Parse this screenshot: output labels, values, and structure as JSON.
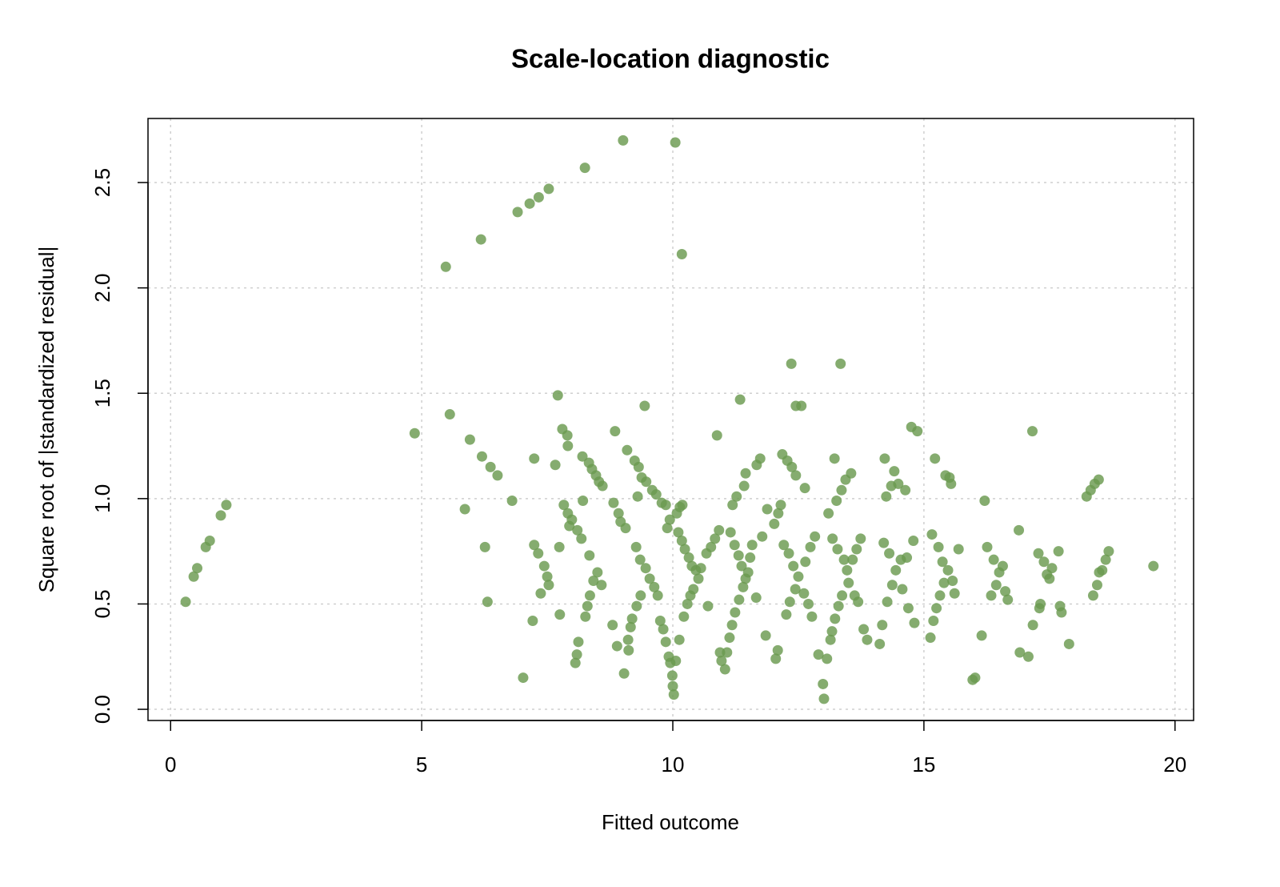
{
  "chart_data": {
    "type": "scatter",
    "title": "Scale-location diagnostic",
    "x_label": "Fitted outcome",
    "y_label": "Square root of |standardized residual|",
    "color": "#6a9a4f",
    "grid": true,
    "xlim": [
      -0.45,
      20.37
    ],
    "ylim": [
      -0.053,
      2.804
    ],
    "xticks": [
      0,
      5,
      10,
      15,
      20
    ],
    "yticks": [
      {
        "value": 0,
        "label": "0.0"
      },
      0.5,
      {
        "value": 1,
        "label": "1.0"
      },
      1.5,
      {
        "value": 2,
        "label": "2.0"
      },
      2.5
    ],
    "x": [
      0.3,
      0.46,
      0.53,
      0.7,
      0.78,
      1.0,
      1.11,
      4.86,
      5.48,
      5.56,
      5.86,
      5.96,
      6.18,
      6.2,
      6.26,
      6.31,
      6.37,
      6.51,
      6.8,
      6.91,
      7.02,
      7.15,
      7.21,
      7.24,
      7.24,
      7.32,
      7.33,
      7.37,
      7.44,
      7.5,
      7.53,
      7.53,
      7.66,
      7.71,
      7.74,
      7.75,
      7.8,
      7.83,
      7.9,
      7.91,
      7.91,
      7.94,
      7.99,
      8.06,
      8.09,
      8.1,
      8.12,
      8.18,
      8.2,
      8.21,
      8.25,
      8.26,
      8.3,
      8.33,
      8.34,
      8.35,
      8.39,
      8.42,
      8.47,
      8.5,
      8.53,
      8.58,
      8.6,
      8.8,
      8.82,
      8.85,
      8.89,
      8.92,
      8.96,
      9.01,
      9.03,
      9.06,
      9.09,
      9.11,
      9.12,
      9.16,
      9.19,
      9.24,
      9.27,
      9.28,
      9.3,
      9.32,
      9.35,
      9.36,
      9.38,
      9.44,
      9.46,
      9.47,
      9.54,
      9.59,
      9.63,
      9.67,
      9.7,
      9.75,
      9.78,
      9.81,
      9.86,
      9.86,
      9.89,
      9.92,
      9.94,
      9.95,
      9.99,
      10.0,
      10.02,
      10.05,
      10.06,
      10.08,
      10.11,
      10.13,
      10.14,
      10.18,
      10.18,
      10.19,
      10.22,
      10.24,
      10.29,
      10.32,
      10.35,
      10.38,
      10.41,
      10.46,
      10.51,
      10.56,
      10.67,
      10.7,
      10.76,
      10.84,
      10.88,
      10.92,
      10.94,
      10.97,
      11.04,
      11.08,
      11.13,
      11.15,
      11.18,
      11.19,
      11.23,
      11.24,
      11.27,
      11.31,
      11.32,
      11.34,
      11.37,
      11.4,
      11.42,
      11.45,
      11.45,
      11.5,
      11.54,
      11.58,
      11.66,
      11.67,
      11.74,
      11.78,
      11.85,
      11.88,
      12.02,
      12.05,
      12.09,
      12.1,
      12.15,
      12.18,
      12.21,
      12.26,
      12.28,
      12.31,
      12.33,
      12.36,
      12.37,
      12.4,
      12.44,
      12.45,
      12.45,
      12.5,
      12.56,
      12.61,
      12.63,
      12.64,
      12.7,
      12.74,
      12.77,
      12.83,
      12.9,
      12.99,
      13.01,
      13.07,
      13.1,
      13.14,
      13.17,
      13.18,
      13.22,
      13.23,
      13.26,
      13.28,
      13.3,
      13.34,
      13.36,
      13.37,
      13.41,
      13.44,
      13.47,
      13.5,
      13.55,
      13.58,
      13.62,
      13.66,
      13.69,
      13.74,
      13.8,
      13.87,
      14.12,
      14.17,
      14.2,
      14.22,
      14.25,
      14.27,
      14.31,
      14.35,
      14.37,
      14.41,
      14.44,
      14.49,
      14.54,
      14.57,
      14.63,
      14.66,
      14.69,
      14.75,
      14.79,
      14.81,
      14.87,
      15.13,
      15.16,
      15.19,
      15.22,
      15.25,
      15.29,
      15.32,
      15.37,
      15.4,
      15.43,
      15.48,
      15.51,
      15.54,
      15.57,
      15.61,
      15.69,
      15.97,
      16.02,
      16.15,
      16.21,
      16.26,
      16.34,
      16.39,
      16.44,
      16.5,
      16.57,
      16.62,
      16.67,
      16.89,
      16.91,
      17.08,
      17.16,
      17.17,
      17.28,
      17.3,
      17.32,
      17.39,
      17.45,
      17.5,
      17.55,
      17.68,
      17.71,
      17.74,
      17.89,
      18.24,
      18.32,
      18.37,
      18.4,
      18.45,
      18.48,
      18.49,
      18.55,
      18.62,
      18.68,
      19.57
    ],
    "y": [
      0.51,
      0.63,
      0.67,
      0.77,
      0.8,
      0.92,
      0.97,
      1.31,
      2.1,
      1.4,
      0.95,
      1.28,
      2.23,
      1.2,
      0.77,
      0.51,
      1.15,
      1.11,
      0.99,
      2.36,
      0.15,
      2.4,
      0.42,
      1.19,
      0.78,
      0.74,
      2.43,
      0.55,
      0.68,
      0.63,
      2.47,
      0.59,
      1.16,
      1.49,
      0.77,
      0.45,
      1.33,
      0.97,
      1.3,
      1.25,
      0.93,
      0.87,
      0.9,
      0.22,
      0.26,
      0.85,
      0.32,
      0.81,
      1.2,
      0.99,
      2.57,
      0.44,
      0.49,
      1.17,
      0.73,
      0.54,
      1.14,
      0.61,
      1.11,
      0.65,
      1.08,
      0.59,
      1.06,
      0.4,
      0.98,
      1.32,
      0.3,
      0.93,
      0.89,
      2.7,
      0.17,
      0.86,
      1.23,
      0.33,
      0.28,
      0.39,
      0.43,
      1.18,
      0.77,
      0.49,
      1.01,
      1.15,
      0.71,
      0.54,
      1.1,
      1.44,
      0.67,
      1.08,
      0.62,
      1.04,
      0.58,
      1.02,
      0.54,
      0.42,
      0.98,
      0.38,
      0.97,
      0.32,
      0.86,
      0.25,
      0.9,
      0.22,
      0.16,
      0.11,
      0.07,
      2.69,
      0.23,
      0.93,
      0.84,
      0.33,
      0.96,
      2.16,
      0.8,
      0.97,
      0.44,
      0.76,
      0.5,
      0.72,
      0.54,
      0.68,
      0.57,
      0.66,
      0.62,
      0.67,
      0.74,
      0.49,
      0.77,
      0.81,
      1.3,
      0.85,
      0.27,
      0.23,
      0.19,
      0.27,
      0.34,
      0.84,
      0.4,
      0.97,
      0.78,
      0.46,
      1.01,
      0.73,
      0.52,
      1.47,
      0.68,
      0.58,
      1.06,
      0.62,
      1.12,
      0.65,
      0.72,
      0.78,
      0.53,
      1.16,
      1.19,
      0.82,
      0.35,
      0.95,
      0.88,
      0.24,
      0.28,
      0.93,
      0.97,
      1.21,
      0.78,
      0.45,
      1.18,
      0.74,
      0.51,
      1.64,
      1.15,
      0.68,
      0.57,
      1.11,
      1.44,
      0.63,
      1.44,
      0.55,
      1.05,
      0.7,
      0.5,
      0.77,
      0.44,
      0.82,
      0.26,
      0.12,
      0.05,
      0.24,
      0.93,
      0.33,
      0.37,
      0.81,
      1.19,
      0.43,
      0.99,
      0.76,
      0.49,
      1.64,
      1.04,
      0.54,
      0.71,
      1.09,
      0.66,
      0.6,
      1.12,
      0.71,
      0.54,
      0.76,
      0.51,
      0.81,
      0.38,
      0.33,
      0.31,
      0.4,
      0.79,
      1.19,
      1.01,
      0.51,
      0.74,
      1.06,
      0.59,
      1.13,
      0.66,
      1.07,
      0.71,
      0.57,
      1.04,
      0.72,
      0.48,
      1.34,
      0.8,
      0.41,
      1.32,
      0.34,
      0.83,
      0.42,
      1.19,
      0.48,
      0.77,
      0.54,
      0.7,
      0.6,
      1.11,
      0.66,
      1.1,
      1.07,
      0.61,
      0.55,
      0.76,
      0.14,
      0.15,
      0.35,
      0.99,
      0.77,
      0.54,
      0.71,
      0.59,
      0.65,
      0.68,
      0.56,
      0.52,
      0.85,
      0.27,
      0.25,
      1.32,
      0.4,
      0.74,
      0.48,
      0.5,
      0.7,
      0.64,
      0.62,
      0.67,
      0.75,
      0.49,
      0.46,
      0.31,
      1.01,
      1.04,
      0.54,
      1.07,
      0.59,
      1.09,
      0.65,
      0.66,
      0.71,
      0.75,
      0.68
    ]
  }
}
